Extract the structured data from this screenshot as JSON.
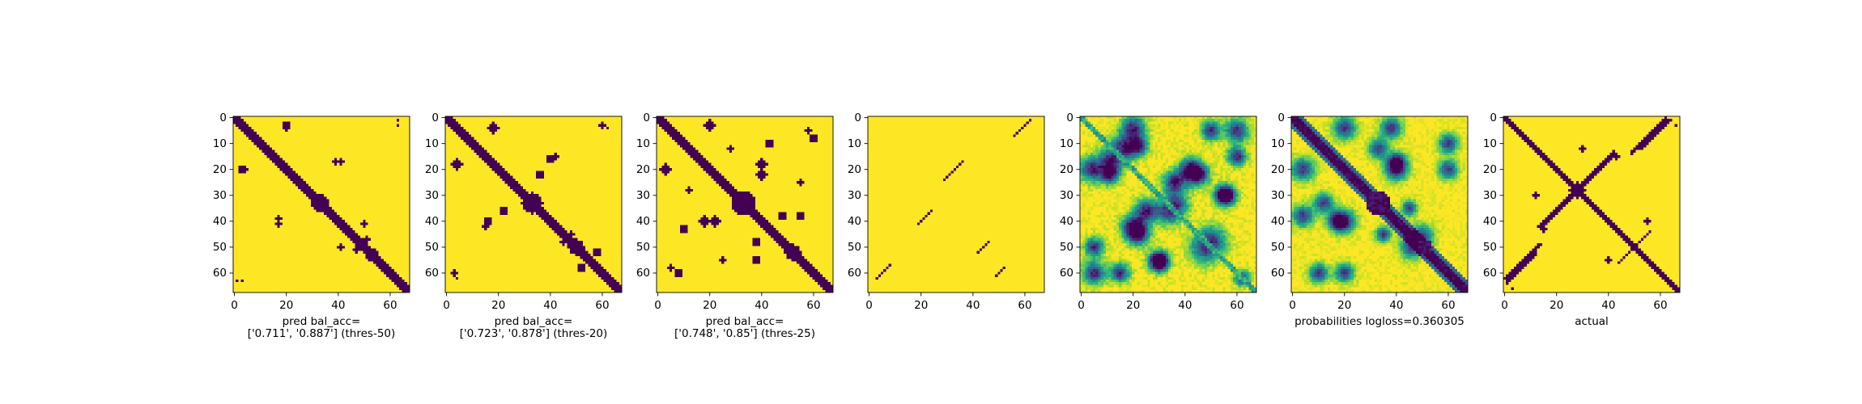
{
  "figure": {
    "background": "#ffffff"
  },
  "colors": {
    "viridis_low": "#440154",
    "viridis_high": "#fde725"
  },
  "chart_data": [
    {
      "type": "heatmap",
      "name": "pred-threshold-50",
      "size": 68,
      "xticks": [
        0,
        20,
        40,
        60
      ],
      "yticks": [
        0,
        10,
        20,
        30,
        40,
        50,
        60
      ],
      "caption_lines": [
        "pred bal_acc=",
        "['0.711', '0.887'] (thres-50)"
      ],
      "pattern": "binary-diagonal-sparse"
    },
    {
      "type": "heatmap",
      "name": "pred-threshold-20",
      "size": 68,
      "xticks": [
        0,
        20,
        40,
        60
      ],
      "yticks": [
        0,
        10,
        20,
        30,
        40,
        50,
        60
      ],
      "caption_lines": [
        "pred bal_acc=",
        "['0.723', '0.878'] (thres-20)"
      ],
      "pattern": "binary-diagonal-medium"
    },
    {
      "type": "heatmap",
      "name": "pred-threshold-25",
      "size": 68,
      "xticks": [
        0,
        20,
        40,
        60
      ],
      "yticks": [
        0,
        10,
        20,
        30,
        40,
        50,
        60
      ],
      "caption_lines": [
        "pred bal_acc=",
        "['0.748', '0.85'] (thres-25)"
      ],
      "pattern": "binary-diagonal-dense"
    },
    {
      "type": "heatmap",
      "name": "antidiagonal-lines",
      "size": 68,
      "xticks": [
        0,
        20,
        40,
        60
      ],
      "yticks": [
        0,
        10,
        20,
        30,
        40,
        50,
        60
      ],
      "caption_lines": [],
      "pattern": "binary-antidiagonal-segments"
    },
    {
      "type": "heatmap",
      "name": "probabilities-blurry",
      "size": 68,
      "xticks": [
        0,
        20,
        40,
        60
      ],
      "yticks": [
        0,
        10,
        20,
        30,
        40,
        50,
        60
      ],
      "caption_lines": [],
      "pattern": "continuous-blobs"
    },
    {
      "type": "heatmap",
      "name": "probabilities",
      "size": 68,
      "xticks": [
        0,
        20,
        40,
        60
      ],
      "yticks": [
        0,
        10,
        20,
        30,
        40,
        50,
        60
      ],
      "caption_lines": [
        "probabilities logloss=0.360305"
      ],
      "pattern": "continuous-diagonal"
    },
    {
      "type": "heatmap",
      "name": "actual",
      "size": 68,
      "xticks": [
        0,
        20,
        40,
        60
      ],
      "yticks": [
        0,
        10,
        20,
        30,
        40,
        50,
        60
      ],
      "caption_lines": [
        "actual"
      ],
      "pattern": "binary-actual-contacts"
    }
  ]
}
